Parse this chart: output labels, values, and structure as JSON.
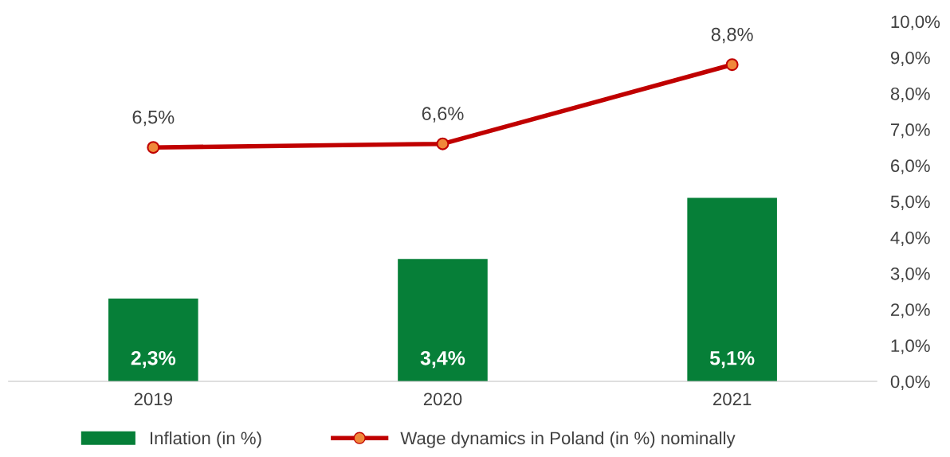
{
  "chart_data": {
    "type": "bar",
    "categories": [
      "2019",
      "2020",
      "2021"
    ],
    "series": [
      {
        "name": "Inflation (in %)",
        "color": "#067f38",
        "values": [
          2.3,
          3.4,
          5.1
        ],
        "value_labels": [
          "2,3%",
          "3,4%",
          "5,1%"
        ]
      },
      {
        "name": "Wage dynamics in Poland (in %) nominally",
        "type": "line",
        "color": "#c00000",
        "marker": "circle",
        "values": [
          6.5,
          6.6,
          8.8
        ],
        "value_labels": [
          "6,5%",
          "6,6%",
          "8,8%"
        ]
      }
    ],
    "ylim": [
      0,
      10
    ],
    "yticks": [
      {
        "value": 0,
        "label": "0,0%"
      },
      {
        "value": 1,
        "label": "1,0%"
      },
      {
        "value": 2,
        "label": "2,0%"
      },
      {
        "value": 3,
        "label": "3,0%"
      },
      {
        "value": 4,
        "label": "4,0%"
      },
      {
        "value": 5,
        "label": "5,0%"
      },
      {
        "value": 6,
        "label": "6,0%"
      },
      {
        "value": 7,
        "label": "7,0%"
      },
      {
        "value": 8,
        "label": "8,0%"
      },
      {
        "value": 9,
        "label": "9,0%"
      },
      {
        "value": 10,
        "label": "10,0%"
      }
    ],
    "grid": false,
    "legend": "bottom"
  }
}
